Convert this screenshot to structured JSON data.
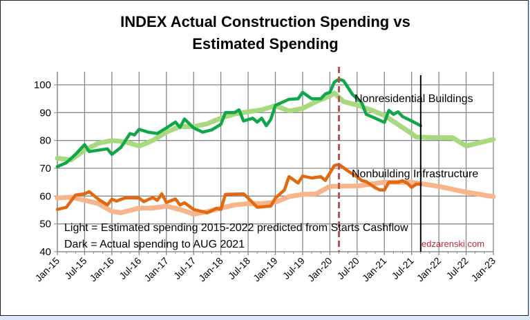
{
  "chart_data": {
    "type": "line",
    "title_lines": [
      "INDEX Actual Construction Spending vs",
      "Estimated Spending"
    ],
    "x_unit": "months since Jan-15",
    "xlim": [
      0,
      96
    ],
    "ylim": [
      40,
      105
    ],
    "yticks": [
      40,
      50,
      60,
      70,
      80,
      90,
      100
    ],
    "xtick_labels": [
      "Jan-15",
      "Jul-15",
      "Jan-16",
      "Jul-16",
      "Jan-17",
      "Jul-17",
      "Jan-18",
      "Jul-18",
      "Jan-19",
      "Jul-19",
      "Jan-20",
      "Jul-20",
      "Jan-21",
      "Jul-21",
      "Jan-22",
      "Jul-22",
      "Jan-23"
    ],
    "grid": true,
    "series": [
      {
        "name": "Nonresidential Buildings (Estimated)",
        "style": "light",
        "color": "#a9d97f",
        "points": [
          [
            0,
            73.6
          ],
          [
            3,
            73
          ],
          [
            6,
            76.5
          ],
          [
            9,
            79
          ],
          [
            12,
            80
          ],
          [
            15,
            79.5
          ],
          [
            18,
            78
          ],
          [
            21,
            80
          ],
          [
            24,
            83
          ],
          [
            27,
            85
          ],
          [
            30,
            85
          ],
          [
            33,
            86
          ],
          [
            36,
            88
          ],
          [
            39,
            89.5
          ],
          [
            42,
            90.3
          ],
          [
            45,
            91
          ],
          [
            48,
            92.5
          ],
          [
            51,
            90.6
          ],
          [
            54,
            91.5
          ],
          [
            57,
            94
          ],
          [
            60,
            96
          ],
          [
            61,
            97
          ],
          [
            63,
            94
          ],
          [
            66,
            92.7
          ],
          [
            69,
            91
          ],
          [
            72,
            89
          ],
          [
            78,
            82.5
          ],
          [
            79,
            81.2
          ],
          [
            84,
            81
          ],
          [
            87,
            81
          ],
          [
            90,
            78
          ],
          [
            93,
            79.2
          ],
          [
            96,
            80.4
          ]
        ]
      },
      {
        "name": "Nonresidential Buildings (Actual)",
        "style": "dark",
        "color": "#10a64a",
        "points": [
          [
            0,
            70.6
          ],
          [
            2,
            72
          ],
          [
            4,
            75
          ],
          [
            6,
            78.5
          ],
          [
            7,
            76
          ],
          [
            9,
            76.5
          ],
          [
            11,
            77
          ],
          [
            12,
            75
          ],
          [
            14,
            77.5
          ],
          [
            16,
            82.5
          ],
          [
            17,
            82
          ],
          [
            18,
            84
          ],
          [
            20,
            83
          ],
          [
            22,
            82.5
          ],
          [
            24,
            84.5
          ],
          [
            26,
            86.6
          ],
          [
            27,
            84.7
          ],
          [
            28,
            87.7
          ],
          [
            30,
            84.5
          ],
          [
            32,
            83
          ],
          [
            34,
            83.8
          ],
          [
            36,
            85.8
          ],
          [
            37,
            90
          ],
          [
            39,
            90
          ],
          [
            40,
            91
          ],
          [
            41,
            87
          ],
          [
            43,
            88
          ],
          [
            44,
            86.6
          ],
          [
            45,
            88
          ],
          [
            46,
            85.3
          ],
          [
            47,
            87.6
          ],
          [
            48,
            92.6
          ],
          [
            51,
            94.8
          ],
          [
            53,
            95
          ],
          [
            54,
            97.3
          ],
          [
            56,
            95
          ],
          [
            58,
            95
          ],
          [
            59,
            96.7
          ],
          [
            60,
            97.3
          ],
          [
            61,
            101
          ],
          [
            62,
            102
          ],
          [
            63,
            101.5
          ],
          [
            65,
            96.5
          ],
          [
            67,
            93.6
          ],
          [
            68,
            89.4
          ],
          [
            70,
            88
          ],
          [
            72,
            86.5
          ],
          [
            73,
            90.8
          ],
          [
            74,
            89.4
          ],
          [
            75,
            90.3
          ],
          [
            76,
            88.6
          ],
          [
            78,
            87
          ],
          [
            80,
            85.3
          ]
        ]
      },
      {
        "name": "Nonbuilding Infrastructure (Estimated)",
        "style": "light",
        "color": "#f8b48a",
        "points": [
          [
            0,
            59.3
          ],
          [
            3,
            59.6
          ],
          [
            6,
            58.5
          ],
          [
            9,
            57.3
          ],
          [
            12,
            54.5
          ],
          [
            14,
            54
          ],
          [
            18,
            55.7
          ],
          [
            21,
            55.7
          ],
          [
            24,
            56.4
          ],
          [
            27,
            55.2
          ],
          [
            30,
            53.5
          ],
          [
            33,
            54.4
          ],
          [
            36,
            55.7
          ],
          [
            39,
            56.8
          ],
          [
            42,
            57.3
          ],
          [
            45,
            57.3
          ],
          [
            48,
            57.8
          ],
          [
            51,
            59.8
          ],
          [
            54,
            60.6
          ],
          [
            57,
            60.8
          ],
          [
            60,
            63.5
          ],
          [
            63,
            63.6
          ],
          [
            66,
            63.6
          ],
          [
            69,
            64.3
          ],
          [
            72,
            65
          ],
          [
            75,
            65
          ],
          [
            78,
            65
          ],
          [
            79,
            64.7
          ],
          [
            84,
            63.5
          ],
          [
            90,
            61.4
          ],
          [
            96,
            59.8
          ]
        ]
      },
      {
        "name": "Nonbuilding Infrastructure (Actual)",
        "style": "dark",
        "color": "#e2690f",
        "points": [
          [
            0,
            55.2
          ],
          [
            2,
            56
          ],
          [
            4,
            60.4
          ],
          [
            6,
            60.8
          ],
          [
            7,
            61.6
          ],
          [
            9,
            58.9
          ],
          [
            11,
            56.8
          ],
          [
            12,
            58.9
          ],
          [
            13,
            58.2
          ],
          [
            15,
            59.4
          ],
          [
            18,
            59.3
          ],
          [
            19,
            58
          ],
          [
            21,
            59.5
          ],
          [
            22,
            58.5
          ],
          [
            23,
            60.8
          ],
          [
            24,
            57.7
          ],
          [
            26,
            59
          ],
          [
            27,
            56.8
          ],
          [
            28,
            57.6
          ],
          [
            30,
            55.2
          ],
          [
            32,
            54.4
          ],
          [
            33,
            54
          ],
          [
            35,
            55.6
          ],
          [
            36,
            55.2
          ],
          [
            37,
            60.6
          ],
          [
            41,
            60.8
          ],
          [
            42,
            59.3
          ],
          [
            44,
            56
          ],
          [
            47,
            56.4
          ],
          [
            48,
            59.3
          ],
          [
            50,
            62.2
          ],
          [
            51,
            67
          ],
          [
            53,
            64.7
          ],
          [
            54,
            67.2
          ],
          [
            56,
            66.5
          ],
          [
            58,
            67
          ],
          [
            59,
            65.6
          ],
          [
            61,
            71
          ],
          [
            62,
            71.4
          ],
          [
            64,
            69
          ],
          [
            66,
            66.9
          ],
          [
            67,
            65.6
          ],
          [
            68,
            65.2
          ],
          [
            70,
            63
          ],
          [
            71,
            62.2
          ],
          [
            72,
            62.2
          ],
          [
            73,
            65
          ],
          [
            75,
            65
          ],
          [
            76,
            65.5
          ],
          [
            77,
            64.7
          ],
          [
            78,
            63.1
          ],
          [
            79,
            64.3
          ],
          [
            80,
            64.3
          ]
        ]
      }
    ],
    "reference_lines": [
      {
        "label": "pandemic-start",
        "x": 62,
        "color": "#c0504d",
        "style": "dashed"
      },
      {
        "label": "actual-data-end",
        "x": 80,
        "color": "#000000",
        "style": "solid"
      }
    ],
    "annotations": {
      "nonres": "Nonresidential Buildings",
      "nonbuilding": "Nonbuilding Infrastructure",
      "legend_light": "Light = Estimated spending 2015-2022 predicted from Starts Cashflow",
      "legend_dark": "Dark = Actual spending to  AUG 2021",
      "watermark": "edzarenski.com"
    }
  }
}
